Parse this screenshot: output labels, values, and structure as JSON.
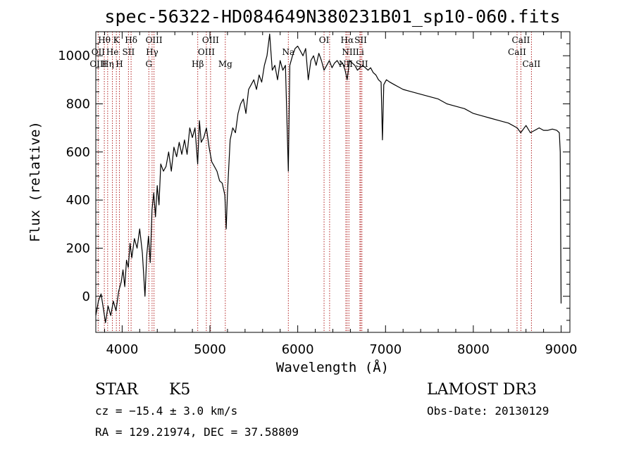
{
  "chart_data": {
    "type": "line",
    "title": "spec-56322-HD084649N380231B01_sp10-060.fits",
    "xlabel": "Wavelength (Å)",
    "ylabel": "Flux (relative)",
    "xlim": [
      3700,
      9100
    ],
    "ylim": [
      -150,
      1100
    ],
    "x_ticks": [
      4000,
      5000,
      6000,
      7000,
      8000,
      9000
    ],
    "y_ticks": [
      0,
      200,
      400,
      600,
      800,
      1000
    ],
    "series": [
      {
        "name": "flux",
        "points": [
          [
            3700,
            -80
          ],
          [
            3730,
            -20
          ],
          [
            3760,
            10
          ],
          [
            3790,
            -60
          ],
          [
            3810,
            -110
          ],
          [
            3840,
            -40
          ],
          [
            3870,
            -80
          ],
          [
            3900,
            -20
          ],
          [
            3930,
            -60
          ],
          [
            3960,
            20
          ],
          [
            3990,
            60
          ],
          [
            4010,
            110
          ],
          [
            4030,
            40
          ],
          [
            4050,
            150
          ],
          [
            4070,
            120
          ],
          [
            4090,
            220
          ],
          [
            4110,
            160
          ],
          [
            4140,
            240
          ],
          [
            4170,
            200
          ],
          [
            4200,
            280
          ],
          [
            4230,
            180
          ],
          [
            4260,
            0
          ],
          [
            4280,
            170
          ],
          [
            4300,
            250
          ],
          [
            4320,
            140
          ],
          [
            4340,
            360
          ],
          [
            4360,
            430
          ],
          [
            4380,
            330
          ],
          [
            4400,
            460
          ],
          [
            4420,
            380
          ],
          [
            4440,
            550
          ],
          [
            4470,
            520
          ],
          [
            4500,
            540
          ],
          [
            4530,
            600
          ],
          [
            4560,
            520
          ],
          [
            4590,
            620
          ],
          [
            4620,
            580
          ],
          [
            4650,
            640
          ],
          [
            4680,
            590
          ],
          [
            4710,
            650
          ],
          [
            4740,
            590
          ],
          [
            4770,
            700
          ],
          [
            4800,
            660
          ],
          [
            4830,
            700
          ],
          [
            4860,
            550
          ],
          [
            4880,
            730
          ],
          [
            4900,
            640
          ],
          [
            4930,
            660
          ],
          [
            4960,
            700
          ],
          [
            4990,
            620
          ],
          [
            5020,
            560
          ],
          [
            5050,
            540
          ],
          [
            5080,
            520
          ],
          [
            5110,
            480
          ],
          [
            5140,
            470
          ],
          [
            5170,
            420
          ],
          [
            5185,
            280
          ],
          [
            5200,
            430
          ],
          [
            5230,
            650
          ],
          [
            5260,
            700
          ],
          [
            5290,
            680
          ],
          [
            5320,
            760
          ],
          [
            5350,
            800
          ],
          [
            5380,
            820
          ],
          [
            5410,
            760
          ],
          [
            5440,
            860
          ],
          [
            5470,
            880
          ],
          [
            5500,
            900
          ],
          [
            5530,
            860
          ],
          [
            5560,
            920
          ],
          [
            5590,
            890
          ],
          [
            5620,
            960
          ],
          [
            5650,
            1000
          ],
          [
            5680,
            1090
          ],
          [
            5710,
            940
          ],
          [
            5740,
            960
          ],
          [
            5770,
            900
          ],
          [
            5800,
            980
          ],
          [
            5830,
            940
          ],
          [
            5860,
            960
          ],
          [
            5893,
            520
          ],
          [
            5910,
            960
          ],
          [
            5940,
            1000
          ],
          [
            5970,
            1030
          ],
          [
            6000,
            1040
          ],
          [
            6030,
            1020
          ],
          [
            6060,
            1000
          ],
          [
            6090,
            1030
          ],
          [
            6120,
            900
          ],
          [
            6150,
            980
          ],
          [
            6180,
            1000
          ],
          [
            6210,
            960
          ],
          [
            6240,
            1010
          ],
          [
            6270,
            980
          ],
          [
            6300,
            940
          ],
          [
            6330,
            960
          ],
          [
            6360,
            980
          ],
          [
            6390,
            950
          ],
          [
            6420,
            970
          ],
          [
            6450,
            980
          ],
          [
            6480,
            960
          ],
          [
            6510,
            970
          ],
          [
            6540,
            940
          ],
          [
            6563,
            900
          ],
          [
            6590,
            980
          ],
          [
            6620,
            970
          ],
          [
            6650,
            960
          ],
          [
            6680,
            940
          ],
          [
            6710,
            950
          ],
          [
            6740,
            960
          ],
          [
            6770,
            950
          ],
          [
            6800,
            940
          ],
          [
            6830,
            950
          ],
          [
            6860,
            930
          ],
          [
            6890,
            920
          ],
          [
            6920,
            900
          ],
          [
            6950,
            890
          ],
          [
            6965,
            650
          ],
          [
            6980,
            880
          ],
          [
            7010,
            900
          ],
          [
            7050,
            890
          ],
          [
            7100,
            880
          ],
          [
            7150,
            870
          ],
          [
            7200,
            860
          ],
          [
            7300,
            850
          ],
          [
            7400,
            840
          ],
          [
            7500,
            830
          ],
          [
            7600,
            820
          ],
          [
            7700,
            800
          ],
          [
            7800,
            790
          ],
          [
            7900,
            780
          ],
          [
            8000,
            760
          ],
          [
            8100,
            750
          ],
          [
            8200,
            740
          ],
          [
            8300,
            730
          ],
          [
            8400,
            720
          ],
          [
            8500,
            700
          ],
          [
            8540,
            680
          ],
          [
            8600,
            710
          ],
          [
            8650,
            680
          ],
          [
            8700,
            690
          ],
          [
            8750,
            700
          ],
          [
            8800,
            690
          ],
          [
            8850,
            690
          ],
          [
            8900,
            695
          ],
          [
            8950,
            690
          ],
          [
            8980,
            680
          ],
          [
            8990,
            600
          ],
          [
            9000,
            -30
          ]
        ]
      }
    ],
    "line_markers": [
      {
        "label": "Hθ",
        "x": 3797,
        "row": 1
      },
      {
        "label": "OII",
        "x": 3727,
        "row": 2
      },
      {
        "label": "OIII",
        "x": 3727,
        "row": 3
      },
      {
        "label": "K",
        "x": 3934,
        "row": 1
      },
      {
        "label": "He",
        "x": 3889,
        "row": 2
      },
      {
        "label": "Hη",
        "x": 3835,
        "row": 3
      },
      {
        "label": "H",
        "x": 3969,
        "row": 3
      },
      {
        "label": "Hδ",
        "x": 4102,
        "row": 1
      },
      {
        "label": "SII",
        "x": 4072,
        "row": 2
      },
      {
        "label": "OIII",
        "x": 4363,
        "row": 1
      },
      {
        "label": "Hγ",
        "x": 4341,
        "row": 2
      },
      {
        "label": "G",
        "x": 4304,
        "row": 3
      },
      {
        "label": "OIII",
        "x": 5007,
        "row": 1
      },
      {
        "label": "OIII",
        "x": 4959,
        "row": 2
      },
      {
        "label": "Hβ",
        "x": 4861,
        "row": 3
      },
      {
        "label": "Mg",
        "x": 5175,
        "row": 3
      },
      {
        "label": "Na",
        "x": 5893,
        "row": 2
      },
      {
        "label": "OI",
        "x": 6300,
        "row": 1
      },
      {
        "label": "Hα",
        "x": 6563,
        "row": 1
      },
      {
        "label": "SII",
        "x": 6717,
        "row": 1
      },
      {
        "label": "NII",
        "x": 6583,
        "row": 2
      },
      {
        "label": "Li",
        "x": 6708,
        "row": 2
      },
      {
        "label": "NII",
        "x": 6548,
        "row": 3
      },
      {
        "label": "SII",
        "x": 6731,
        "row": 3
      },
      {
        "label": "CaII",
        "x": 8542,
        "row": 1
      },
      {
        "label": "CaII",
        "x": 8498,
        "row": 2
      },
      {
        "label": "CaII",
        "x": 8662,
        "row": 3
      }
    ],
    "marker_lines_x": [
      3727,
      3797,
      3835,
      3889,
      3934,
      3969,
      4072,
      4102,
      4304,
      4341,
      4363,
      4861,
      4959,
      5007,
      5175,
      5893,
      6300,
      6363,
      6548,
      6563,
      6583,
      6708,
      6717,
      6731,
      8498,
      8542,
      8662
    ]
  },
  "info": {
    "object_type": "STAR",
    "subclass": "K5",
    "survey": "LAMOST DR3",
    "cz": "cz = −15.4 ± 3.0 km/s",
    "obs_date": "Obs-Date: 20130129",
    "coords": "RA = 129.21974, DEC =  37.58809"
  },
  "colors": {
    "line": "#000000",
    "marker": "#b22222",
    "axis": "#000000"
  }
}
